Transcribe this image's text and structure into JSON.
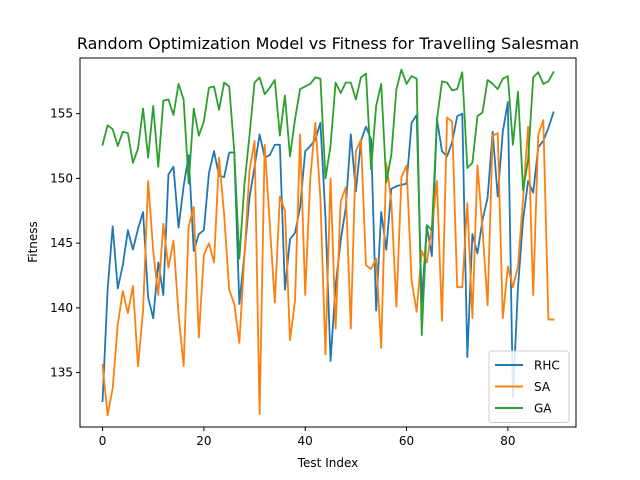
{
  "chart_data": {
    "type": "line",
    "title": "Random Optimization Model vs Fitness for Travelling Salesman",
    "xlabel": "Test Index",
    "ylabel": "Fitness",
    "xlim": [
      -4.45,
      93.45
    ],
    "ylim": [
      130.8,
      159.3
    ],
    "xticks": [
      0,
      20,
      40,
      60,
      80
    ],
    "yticks": [
      135,
      140,
      145,
      150,
      155
    ],
    "grid": false,
    "legend_position": "lower-right",
    "x": [
      0,
      1,
      2,
      3,
      4,
      5,
      6,
      7,
      8,
      9,
      10,
      11,
      12,
      13,
      14,
      15,
      16,
      17,
      18,
      19,
      20,
      21,
      22,
      23,
      24,
      25,
      26,
      27,
      28,
      29,
      30,
      31,
      32,
      33,
      34,
      35,
      36,
      37,
      38,
      39,
      40,
      41,
      42,
      43,
      44,
      45,
      46,
      47,
      48,
      49,
      50,
      51,
      52,
      53,
      54,
      55,
      56,
      57,
      58,
      59,
      60,
      61,
      62,
      63,
      64,
      65,
      66,
      67,
      68,
      69,
      70,
      71,
      72,
      73,
      74,
      75,
      76,
      77,
      78,
      79,
      80,
      81,
      82,
      83,
      84,
      85,
      86,
      87,
      88,
      89
    ],
    "series": [
      {
        "name": "RHC",
        "color": "#1f77b4",
        "values": [
          132.8,
          141.4,
          146.3,
          141.5,
          143.3,
          146.0,
          144.5,
          146.1,
          147.4,
          140.8,
          139.2,
          143.5,
          141.0,
          150.3,
          150.9,
          146.2,
          149.4,
          151.8,
          144.4,
          145.7,
          146.0,
          150.4,
          152.1,
          150.2,
          150.1,
          152.0,
          152.0,
          140.3,
          144.1,
          148.5,
          150.9,
          153.4,
          151.6,
          151.8,
          152.6,
          152.6,
          141.4,
          145.3,
          145.8,
          147.8,
          152.1,
          152.5,
          153.0,
          154.3,
          147.0,
          135.9,
          141.7,
          145.2,
          147.7,
          153.4,
          149.0,
          152.9,
          154.0,
          153.0,
          139.8,
          147.4,
          144.5,
          149.2,
          149.4,
          149.5,
          149.6,
          154.3,
          154.9,
          140.4,
          146.3,
          144.0,
          154.6,
          152.1,
          151.7,
          152.8,
          154.8,
          155.0,
          136.2,
          145.7,
          144.2,
          146.8,
          148.5,
          153.6,
          148.6,
          153.6,
          155.9,
          133.1,
          141.6,
          146.8,
          149.8,
          148.9,
          152.4,
          152.9,
          153.9,
          155.1
        ]
      },
      {
        "name": "SA",
        "color": "#ff7f0e",
        "values": [
          135.6,
          131.7,
          133.8,
          138.7,
          141.3,
          139.6,
          141.7,
          135.5,
          139.8,
          149.8,
          144.4,
          141.0,
          146.5,
          143.1,
          145.2,
          139.5,
          135.5,
          146.3,
          147.8,
          137.7,
          144.1,
          145.0,
          143.5,
          151.6,
          147.2,
          141.4,
          140.3,
          137.3,
          144.0,
          150.6,
          152.9,
          131.8,
          152.6,
          146.5,
          140.4,
          148.6,
          147.5,
          137.5,
          140.6,
          153.4,
          141.0,
          150.0,
          154.3,
          148.5,
          136.4,
          150.0,
          138.4,
          148.2,
          149.3,
          138.4,
          152.1,
          153.0,
          143.3,
          143.0,
          143.8,
          136.9,
          151.2,
          148.2,
          140.1,
          150.1,
          151.0,
          142.1,
          139.7,
          144.4,
          143.5,
          146.2,
          149.8,
          139.0,
          154.7,
          154.4,
          141.6,
          141.6,
          148.1,
          139.2,
          151.0,
          146.1,
          140.2,
          153.3,
          153.5,
          139.2,
          143.2,
          141.6,
          143.2,
          148.4,
          154.0,
          141.0,
          153.4,
          154.5,
          139.1,
          139.1
        ]
      },
      {
        "name": "GA",
        "color": "#2ca02c",
        "values": [
          152.6,
          154.1,
          153.8,
          152.5,
          153.6,
          153.5,
          151.2,
          152.3,
          155.4,
          151.6,
          155.6,
          150.9,
          156.0,
          156.1,
          154.9,
          157.3,
          156.1,
          149.6,
          155.4,
          153.3,
          154.4,
          157.0,
          157.1,
          155.3,
          157.4,
          157.1,
          152.1,
          143.8,
          149.5,
          153.3,
          157.4,
          157.8,
          156.5,
          157.0,
          157.6,
          153.3,
          156.4,
          151.7,
          154.6,
          156.9,
          157.1,
          157.3,
          157.8,
          157.7,
          150.0,
          152.5,
          157.4,
          156.6,
          157.4,
          157.4,
          156.1,
          157.8,
          158.1,
          150.7,
          155.6,
          157.3,
          149.7,
          151.8,
          156.9,
          158.4,
          157.3,
          157.9,
          157.7,
          137.9,
          146.4,
          146.0,
          154.5,
          157.5,
          157.4,
          156.8,
          156.9,
          158.2,
          150.8,
          151.2,
          154.8,
          155.1,
          157.6,
          157.3,
          156.9,
          157.7,
          157.9,
          152.6,
          156.7,
          149.1,
          151.4,
          157.8,
          158.2,
          157.3,
          157.5,
          158.2
        ]
      }
    ]
  }
}
